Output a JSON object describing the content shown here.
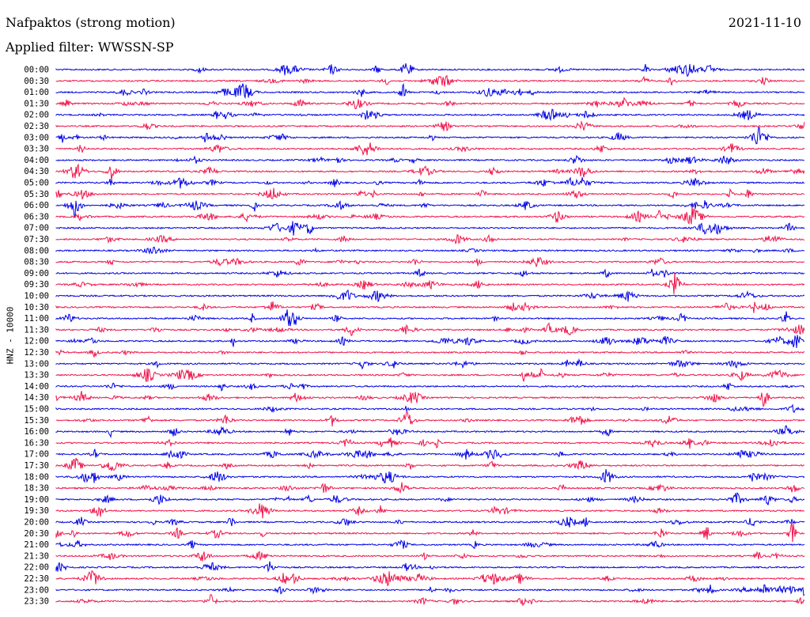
{
  "header": {
    "station": "Nafpaktos (strong motion)",
    "date": "2021-11-10",
    "filter": "Applied filter: WWSSN-SP"
  },
  "chart_data": {
    "type": "helicorder",
    "ylabel": "HNZ - 10000",
    "rows": [
      "00:00",
      "00:30",
      "01:00",
      "01:30",
      "02:00",
      "02:30",
      "03:00",
      "03:30",
      "04:00",
      "04:30",
      "05:00",
      "05:30",
      "06:00",
      "06:30",
      "07:00",
      "07:30",
      "08:00",
      "08:30",
      "09:00",
      "09:30",
      "10:00",
      "10:30",
      "11:00",
      "11:30",
      "12:00",
      "12:30",
      "13:00",
      "13:30",
      "14:00",
      "14:30",
      "15:00",
      "15:30",
      "16:00",
      "16:30",
      "17:00",
      "17:30",
      "18:00",
      "18:30",
      "19:00",
      "19:30",
      "20:00",
      "20:30",
      "21:00",
      "21:30",
      "22:00",
      "22:30",
      "23:00",
      "23:30"
    ],
    "colors": [
      "#0000e6",
      "#f0144b"
    ]
  }
}
